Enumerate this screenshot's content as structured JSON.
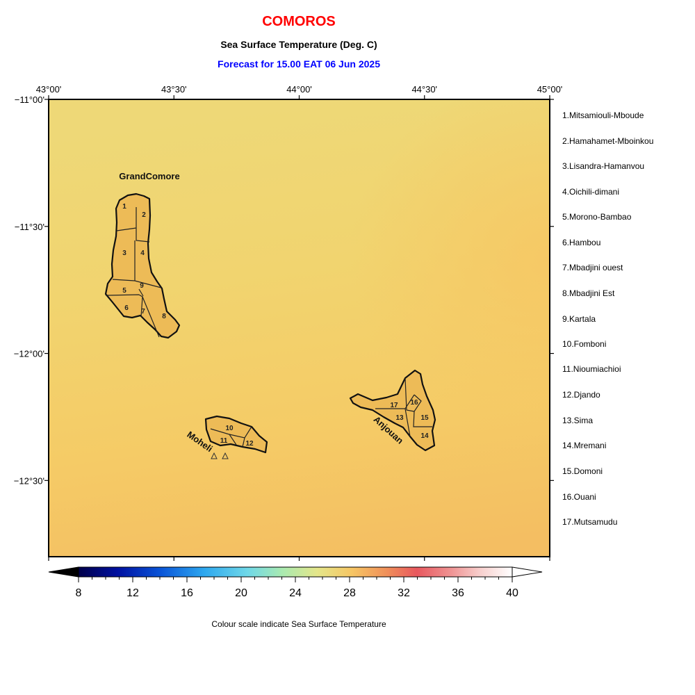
{
  "header": {
    "title": "COMOROS",
    "subtitle": "Sea Surface Temperature (Deg. C)",
    "forecast": "Forecast for  15.00 EAT 06 Jun 2025"
  },
  "map": {
    "lon_ticks": [
      "43°00'",
      "43°30'",
      "44°00'",
      "44°30'",
      "45°00'"
    ],
    "lat_ticks": [
      "−11°00'",
      "−11°30'",
      "−12°00'",
      "−12°30'"
    ],
    "sst_colors": {
      "sea_light": "#eed877",
      "sea_main": "#f5cd68",
      "sea_dark": "#f4be62",
      "land": "#edbb57"
    },
    "islands": [
      {
        "name": "GrandComore"
      },
      {
        "name": "Moheli"
      },
      {
        "name": "Anjouan"
      }
    ],
    "region_numbers": [
      "1",
      "2",
      "3",
      "4",
      "5",
      "6",
      "7",
      "8",
      "9",
      "10",
      "11",
      "12",
      "13",
      "14",
      "15",
      "16",
      "17"
    ]
  },
  "legend": {
    "regions": [
      "1.Mitsamiouli-Mboude",
      "2.Hamahamet-Mboinkou",
      "3.Lisandra-Hamanvou",
      "4.Oichili-dimani",
      "5.Morono-Bambao",
      "6.Hambou",
      "7.Mbadjini ouest",
      "8.Mbadjini Est",
      "9.Kartala",
      "10.Fomboni",
      "11.Nioumiachioi",
      "12.Djando",
      "13.Sima",
      "14.Mremani",
      "15.Domoni",
      "16.Ouani",
      "17.Mutsamudu"
    ]
  },
  "colorbar": {
    "labels": [
      "8",
      "12",
      "16",
      "20",
      "24",
      "28",
      "32",
      "36",
      "40"
    ],
    "min": 8,
    "max": 40,
    "caption": "Colour scale indicate Sea Surface Temperature"
  }
}
